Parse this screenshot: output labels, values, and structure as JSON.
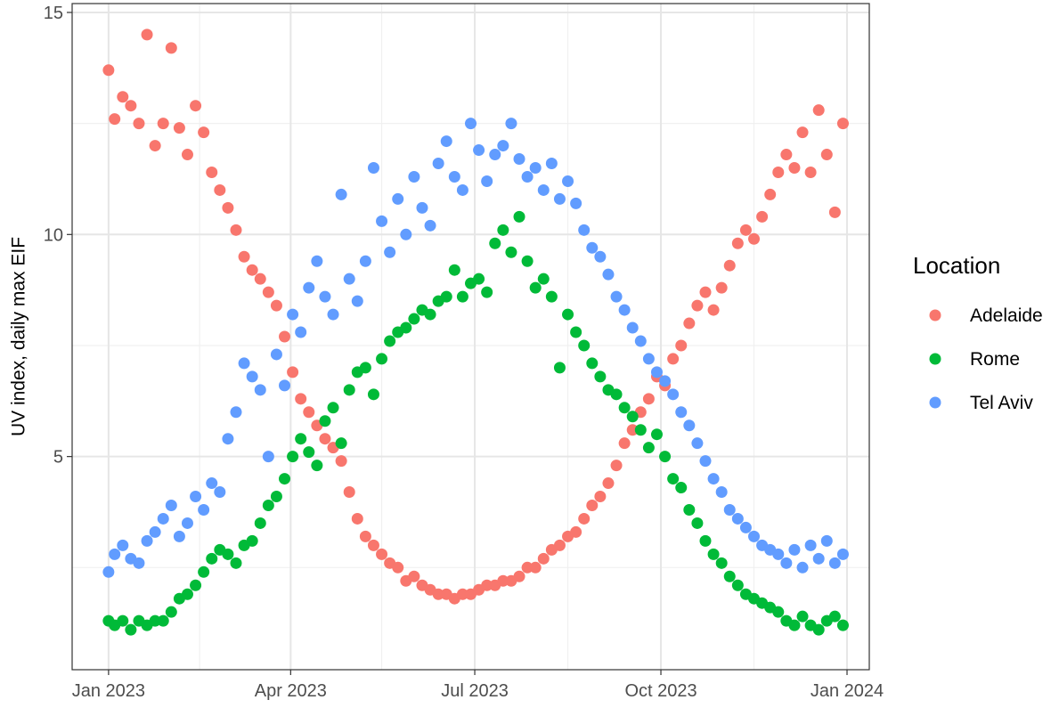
{
  "chart_data": {
    "type": "scatter",
    "title": "",
    "xlabel": "",
    "ylabel": "UV index, daily max EIF",
    "x_axis": {
      "kind": "date",
      "range": [
        "2022-12-14",
        "2024-01-12"
      ],
      "ticks": [
        {
          "date": "2023-01-01",
          "label": "Jan 2023"
        },
        {
          "date": "2023-04-01",
          "label": "Apr 2023"
        },
        {
          "date": "2023-07-01",
          "label": "Jul 2023"
        },
        {
          "date": "2023-10-01",
          "label": "Oct 2023"
        },
        {
          "date": "2024-01-01",
          "label": "Jan 2024"
        }
      ],
      "minor_ticks": [
        "2023-02-15",
        "2023-05-16",
        "2023-08-16",
        "2023-11-16"
      ]
    },
    "y_axis": {
      "range": [
        0.2,
        15.2
      ],
      "ticks": [
        5,
        10,
        15
      ],
      "minor_ticks": [
        2.5,
        7.5,
        12.5
      ]
    },
    "grid": true,
    "legend": {
      "title": "Location",
      "placement": "right"
    },
    "series": [
      {
        "name": "Adelaide",
        "color": "#F8766D",
        "points": [
          [
            "2023-01-01",
            13.7
          ],
          [
            "2023-01-04",
            12.6
          ],
          [
            "2023-01-08",
            13.1
          ],
          [
            "2023-01-12",
            12.9
          ],
          [
            "2023-01-16",
            12.5
          ],
          [
            "2023-01-20",
            14.5
          ],
          [
            "2023-01-24",
            12.0
          ],
          [
            "2023-01-28",
            12.5
          ],
          [
            "2023-02-01",
            14.2
          ],
          [
            "2023-02-05",
            12.4
          ],
          [
            "2023-02-09",
            11.8
          ],
          [
            "2023-02-13",
            12.9
          ],
          [
            "2023-02-17",
            12.3
          ],
          [
            "2023-02-21",
            11.4
          ],
          [
            "2023-02-25",
            11.0
          ],
          [
            "2023-03-01",
            10.6
          ],
          [
            "2023-03-05",
            10.1
          ],
          [
            "2023-03-09",
            9.5
          ],
          [
            "2023-03-13",
            9.2
          ],
          [
            "2023-03-17",
            9.0
          ],
          [
            "2023-03-21",
            8.7
          ],
          [
            "2023-03-25",
            8.4
          ],
          [
            "2023-03-29",
            7.7
          ],
          [
            "2023-04-02",
            6.9
          ],
          [
            "2023-04-06",
            6.3
          ],
          [
            "2023-04-10",
            6.0
          ],
          [
            "2023-04-14",
            5.7
          ],
          [
            "2023-04-18",
            5.4
          ],
          [
            "2023-04-22",
            5.2
          ],
          [
            "2023-04-26",
            4.9
          ],
          [
            "2023-04-30",
            4.2
          ],
          [
            "2023-05-04",
            3.6
          ],
          [
            "2023-05-08",
            3.2
          ],
          [
            "2023-05-12",
            3.0
          ],
          [
            "2023-05-16",
            2.8
          ],
          [
            "2023-05-20",
            2.6
          ],
          [
            "2023-05-24",
            2.5
          ],
          [
            "2023-05-28",
            2.2
          ],
          [
            "2023-06-01",
            2.3
          ],
          [
            "2023-06-05",
            2.1
          ],
          [
            "2023-06-09",
            2.0
          ],
          [
            "2023-06-13",
            1.9
          ],
          [
            "2023-06-17",
            1.9
          ],
          [
            "2023-06-21",
            1.8
          ],
          [
            "2023-06-25",
            1.9
          ],
          [
            "2023-06-29",
            1.9
          ],
          [
            "2023-07-03",
            2.0
          ],
          [
            "2023-07-07",
            2.1
          ],
          [
            "2023-07-11",
            2.1
          ],
          [
            "2023-07-15",
            2.2
          ],
          [
            "2023-07-19",
            2.2
          ],
          [
            "2023-07-23",
            2.3
          ],
          [
            "2023-07-27",
            2.5
          ],
          [
            "2023-07-31",
            2.5
          ],
          [
            "2023-08-04",
            2.7
          ],
          [
            "2023-08-08",
            2.9
          ],
          [
            "2023-08-12",
            3.0
          ],
          [
            "2023-08-16",
            3.2
          ],
          [
            "2023-08-20",
            3.3
          ],
          [
            "2023-08-24",
            3.6
          ],
          [
            "2023-08-28",
            3.9
          ],
          [
            "2023-09-01",
            4.1
          ],
          [
            "2023-09-05",
            4.4
          ],
          [
            "2023-09-09",
            4.8
          ],
          [
            "2023-09-13",
            5.3
          ],
          [
            "2023-09-17",
            5.6
          ],
          [
            "2023-09-21",
            6.0
          ],
          [
            "2023-09-25",
            6.3
          ],
          [
            "2023-09-29",
            6.8
          ],
          [
            "2023-10-03",
            6.6
          ],
          [
            "2023-10-07",
            7.2
          ],
          [
            "2023-10-11",
            7.5
          ],
          [
            "2023-10-15",
            8.0
          ],
          [
            "2023-10-19",
            8.4
          ],
          [
            "2023-10-23",
            8.7
          ],
          [
            "2023-10-27",
            8.3
          ],
          [
            "2023-10-31",
            8.8
          ],
          [
            "2023-11-04",
            9.3
          ],
          [
            "2023-11-08",
            9.8
          ],
          [
            "2023-11-12",
            10.1
          ],
          [
            "2023-11-16",
            9.9
          ],
          [
            "2023-11-20",
            10.4
          ],
          [
            "2023-11-24",
            10.9
          ],
          [
            "2023-11-28",
            11.4
          ],
          [
            "2023-12-02",
            11.8
          ],
          [
            "2023-12-06",
            11.5
          ],
          [
            "2023-12-10",
            12.3
          ],
          [
            "2023-12-14",
            11.4
          ],
          [
            "2023-12-18",
            12.8
          ],
          [
            "2023-12-22",
            11.8
          ],
          [
            "2023-12-26",
            10.5
          ],
          [
            "2023-12-30",
            12.5
          ]
        ]
      },
      {
        "name": "Rome",
        "color": "#00BA38",
        "points": [
          [
            "2023-01-01",
            1.3
          ],
          [
            "2023-01-04",
            1.2
          ],
          [
            "2023-01-08",
            1.3
          ],
          [
            "2023-01-12",
            1.1
          ],
          [
            "2023-01-16",
            1.3
          ],
          [
            "2023-01-20",
            1.2
          ],
          [
            "2023-01-24",
            1.3
          ],
          [
            "2023-01-28",
            1.3
          ],
          [
            "2023-02-01",
            1.5
          ],
          [
            "2023-02-05",
            1.8
          ],
          [
            "2023-02-09",
            1.9
          ],
          [
            "2023-02-13",
            2.1
          ],
          [
            "2023-02-17",
            2.4
          ],
          [
            "2023-02-21",
            2.7
          ],
          [
            "2023-02-25",
            2.9
          ],
          [
            "2023-03-01",
            2.8
          ],
          [
            "2023-03-05",
            2.6
          ],
          [
            "2023-03-09",
            3.0
          ],
          [
            "2023-03-13",
            3.1
          ],
          [
            "2023-03-17",
            3.5
          ],
          [
            "2023-03-21",
            3.9
          ],
          [
            "2023-03-25",
            4.1
          ],
          [
            "2023-03-29",
            4.5
          ],
          [
            "2023-04-02",
            5.0
          ],
          [
            "2023-04-06",
            5.4
          ],
          [
            "2023-04-10",
            5.1
          ],
          [
            "2023-04-14",
            4.8
          ],
          [
            "2023-04-18",
            5.8
          ],
          [
            "2023-04-22",
            6.1
          ],
          [
            "2023-04-26",
            5.3
          ],
          [
            "2023-04-30",
            6.5
          ],
          [
            "2023-05-04",
            6.9
          ],
          [
            "2023-05-08",
            7.0
          ],
          [
            "2023-05-12",
            6.4
          ],
          [
            "2023-05-16",
            7.2
          ],
          [
            "2023-05-20",
            7.6
          ],
          [
            "2023-05-24",
            7.8
          ],
          [
            "2023-05-28",
            7.9
          ],
          [
            "2023-06-01",
            8.1
          ],
          [
            "2023-06-05",
            8.3
          ],
          [
            "2023-06-09",
            8.2
          ],
          [
            "2023-06-13",
            8.5
          ],
          [
            "2023-06-17",
            8.6
          ],
          [
            "2023-06-21",
            9.2
          ],
          [
            "2023-06-25",
            8.6
          ],
          [
            "2023-06-29",
            8.9
          ],
          [
            "2023-07-03",
            9.0
          ],
          [
            "2023-07-07",
            8.7
          ],
          [
            "2023-07-11",
            9.8
          ],
          [
            "2023-07-15",
            10.1
          ],
          [
            "2023-07-19",
            9.6
          ],
          [
            "2023-07-23",
            10.4
          ],
          [
            "2023-07-27",
            9.4
          ],
          [
            "2023-07-31",
            8.8
          ],
          [
            "2023-08-04",
            9.0
          ],
          [
            "2023-08-08",
            8.6
          ],
          [
            "2023-08-12",
            7.0
          ],
          [
            "2023-08-16",
            8.2
          ],
          [
            "2023-08-20",
            7.8
          ],
          [
            "2023-08-24",
            7.5
          ],
          [
            "2023-08-28",
            7.1
          ],
          [
            "2023-09-01",
            6.8
          ],
          [
            "2023-09-05",
            6.5
          ],
          [
            "2023-09-09",
            6.4
          ],
          [
            "2023-09-13",
            6.1
          ],
          [
            "2023-09-17",
            5.9
          ],
          [
            "2023-09-21",
            5.6
          ],
          [
            "2023-09-25",
            5.2
          ],
          [
            "2023-09-29",
            5.5
          ],
          [
            "2023-10-03",
            5.0
          ],
          [
            "2023-10-07",
            4.5
          ],
          [
            "2023-10-11",
            4.3
          ],
          [
            "2023-10-15",
            3.8
          ],
          [
            "2023-10-19",
            3.5
          ],
          [
            "2023-10-23",
            3.1
          ],
          [
            "2023-10-27",
            2.8
          ],
          [
            "2023-10-31",
            2.6
          ],
          [
            "2023-11-04",
            2.3
          ],
          [
            "2023-11-08",
            2.1
          ],
          [
            "2023-11-12",
            1.9
          ],
          [
            "2023-11-16",
            1.8
          ],
          [
            "2023-11-20",
            1.7
          ],
          [
            "2023-11-24",
            1.6
          ],
          [
            "2023-11-28",
            1.5
          ],
          [
            "2023-12-02",
            1.3
          ],
          [
            "2023-12-06",
            1.2
          ],
          [
            "2023-12-10",
            1.4
          ],
          [
            "2023-12-14",
            1.2
          ],
          [
            "2023-12-18",
            1.1
          ],
          [
            "2023-12-22",
            1.3
          ],
          [
            "2023-12-26",
            1.4
          ],
          [
            "2023-12-30",
            1.2
          ]
        ]
      },
      {
        "name": "Tel Aviv",
        "color": "#619CFF",
        "points": [
          [
            "2023-01-01",
            2.4
          ],
          [
            "2023-01-04",
            2.8
          ],
          [
            "2023-01-08",
            3.0
          ],
          [
            "2023-01-12",
            2.7
          ],
          [
            "2023-01-16",
            2.6
          ],
          [
            "2023-01-20",
            3.1
          ],
          [
            "2023-01-24",
            3.3
          ],
          [
            "2023-01-28",
            3.6
          ],
          [
            "2023-02-01",
            3.9
          ],
          [
            "2023-02-05",
            3.2
          ],
          [
            "2023-02-09",
            3.5
          ],
          [
            "2023-02-13",
            4.1
          ],
          [
            "2023-02-17",
            3.8
          ],
          [
            "2023-02-21",
            4.4
          ],
          [
            "2023-02-25",
            4.2
          ],
          [
            "2023-03-01",
            5.4
          ],
          [
            "2023-03-05",
            6.0
          ],
          [
            "2023-03-09",
            7.1
          ],
          [
            "2023-03-13",
            6.8
          ],
          [
            "2023-03-17",
            6.5
          ],
          [
            "2023-03-21",
            5.0
          ],
          [
            "2023-03-25",
            7.3
          ],
          [
            "2023-03-29",
            6.6
          ],
          [
            "2023-04-02",
            8.2
          ],
          [
            "2023-04-06",
            7.8
          ],
          [
            "2023-04-10",
            8.8
          ],
          [
            "2023-04-14",
            9.4
          ],
          [
            "2023-04-18",
            8.6
          ],
          [
            "2023-04-22",
            8.2
          ],
          [
            "2023-04-26",
            10.9
          ],
          [
            "2023-04-30",
            9.0
          ],
          [
            "2023-05-04",
            8.5
          ],
          [
            "2023-05-08",
            9.4
          ],
          [
            "2023-05-12",
            11.5
          ],
          [
            "2023-05-16",
            10.3
          ],
          [
            "2023-05-20",
            9.6
          ],
          [
            "2023-05-24",
            10.8
          ],
          [
            "2023-05-28",
            10.0
          ],
          [
            "2023-06-01",
            11.3
          ],
          [
            "2023-06-05",
            10.6
          ],
          [
            "2023-06-09",
            10.2
          ],
          [
            "2023-06-13",
            11.6
          ],
          [
            "2023-06-17",
            12.1
          ],
          [
            "2023-06-21",
            11.3
          ],
          [
            "2023-06-25",
            11.0
          ],
          [
            "2023-06-29",
            12.5
          ],
          [
            "2023-07-03",
            11.9
          ],
          [
            "2023-07-07",
            11.2
          ],
          [
            "2023-07-11",
            11.8
          ],
          [
            "2023-07-15",
            12.0
          ],
          [
            "2023-07-19",
            12.5
          ],
          [
            "2023-07-23",
            11.7
          ],
          [
            "2023-07-27",
            11.3
          ],
          [
            "2023-07-31",
            11.5
          ],
          [
            "2023-08-04",
            11.0
          ],
          [
            "2023-08-08",
            11.6
          ],
          [
            "2023-08-12",
            10.8
          ],
          [
            "2023-08-16",
            11.2
          ],
          [
            "2023-08-20",
            10.7
          ],
          [
            "2023-08-24",
            10.1
          ],
          [
            "2023-08-28",
            9.7
          ],
          [
            "2023-09-01",
            9.5
          ],
          [
            "2023-09-05",
            9.1
          ],
          [
            "2023-09-09",
            8.6
          ],
          [
            "2023-09-13",
            8.3
          ],
          [
            "2023-09-17",
            7.9
          ],
          [
            "2023-09-21",
            7.6
          ],
          [
            "2023-09-25",
            7.2
          ],
          [
            "2023-09-29",
            6.9
          ],
          [
            "2023-10-03",
            6.7
          ],
          [
            "2023-10-07",
            6.4
          ],
          [
            "2023-10-11",
            6.0
          ],
          [
            "2023-10-15",
            5.7
          ],
          [
            "2023-10-19",
            5.3
          ],
          [
            "2023-10-23",
            4.9
          ],
          [
            "2023-10-27",
            4.5
          ],
          [
            "2023-10-31",
            4.2
          ],
          [
            "2023-11-04",
            3.8
          ],
          [
            "2023-11-08",
            3.6
          ],
          [
            "2023-11-12",
            3.4
          ],
          [
            "2023-11-16",
            3.2
          ],
          [
            "2023-11-20",
            3.0
          ],
          [
            "2023-11-24",
            2.9
          ],
          [
            "2023-11-28",
            2.8
          ],
          [
            "2023-12-02",
            2.6
          ],
          [
            "2023-12-06",
            2.9
          ],
          [
            "2023-12-10",
            2.5
          ],
          [
            "2023-12-14",
            3.0
          ],
          [
            "2023-12-18",
            2.7
          ],
          [
            "2023-12-22",
            3.1
          ],
          [
            "2023-12-26",
            2.6
          ],
          [
            "2023-12-30",
            2.8
          ]
        ]
      }
    ]
  }
}
